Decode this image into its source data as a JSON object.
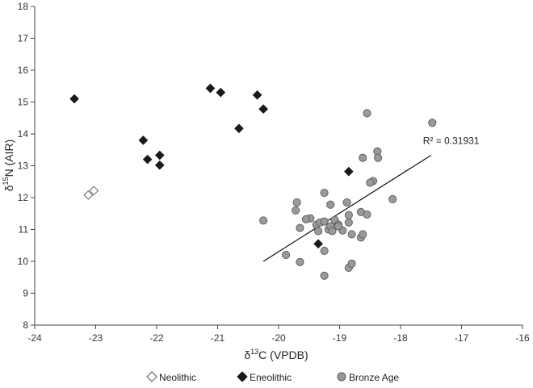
{
  "chart_data": {
    "type": "scatter",
    "title": "",
    "xlabel_prefix": "δ",
    "xlabel_sup": "13",
    "xlabel_rest": "C (VPDB)",
    "ylabel_prefix": "δ",
    "ylabel_sup": "15",
    "ylabel_rest": "N (AIR)",
    "xlim": [
      -24,
      -16
    ],
    "ylim": [
      8,
      18
    ],
    "xticks": [
      -24,
      -23,
      -22,
      -21,
      -20,
      -19,
      -18,
      -17,
      -16
    ],
    "yticks": [
      8,
      9,
      10,
      11,
      12,
      13,
      14,
      15,
      16,
      17,
      18
    ],
    "grid": false,
    "legend_position": "bottom",
    "series": [
      {
        "name": "Neolithic",
        "marker": "diamond-open",
        "color": "#ffffff",
        "stroke": "#555555",
        "points": [
          [
            -23.12,
            12.08
          ],
          [
            -23.03,
            12.22
          ]
        ]
      },
      {
        "name": "Eneolithic",
        "marker": "diamond-filled",
        "color": "#1a1a1a",
        "stroke": "#1a1a1a",
        "points": [
          [
            -23.35,
            15.1
          ],
          [
            -22.22,
            13.8
          ],
          [
            -22.15,
            13.2
          ],
          [
            -21.95,
            13.33
          ],
          [
            -21.95,
            13.02
          ],
          [
            -21.12,
            15.43
          ],
          [
            -20.95,
            15.3
          ],
          [
            -20.65,
            14.17
          ],
          [
            -20.35,
            15.22
          ],
          [
            -20.25,
            14.78
          ],
          [
            -18.85,
            12.82
          ],
          [
            -19.35,
            10.55
          ]
        ]
      },
      {
        "name": "Bronze Age",
        "marker": "circle",
        "color": "#9a9a9a",
        "stroke": "#5a5a5a",
        "points": [
          [
            -18.55,
            14.65
          ],
          [
            -17.48,
            14.35
          ],
          [
            -18.62,
            13.25
          ],
          [
            -18.38,
            13.45
          ],
          [
            -18.37,
            13.25
          ],
          [
            -18.45,
            12.52
          ],
          [
            -18.5,
            12.47
          ],
          [
            -18.13,
            11.95
          ],
          [
            -19.25,
            12.15
          ],
          [
            -19.7,
            11.85
          ],
          [
            -19.72,
            11.6
          ],
          [
            -19.48,
            11.35
          ],
          [
            -19.55,
            11.32
          ],
          [
            -19.38,
            11.15
          ],
          [
            -19.32,
            11.22
          ],
          [
            -19.25,
            11.25
          ],
          [
            -19.18,
            11.0
          ],
          [
            -19.15,
            11.1
          ],
          [
            -19.08,
            11.3
          ],
          [
            -19.02,
            11.15
          ],
          [
            -18.95,
            10.97
          ],
          [
            -19.12,
            10.95
          ],
          [
            -19.35,
            10.95
          ],
          [
            -18.88,
            11.85
          ],
          [
            -18.85,
            11.45
          ],
          [
            -18.85,
            11.22
          ],
          [
            -18.65,
            11.55
          ],
          [
            -18.55,
            11.47
          ],
          [
            -18.8,
            10.85
          ],
          [
            -18.65,
            10.75
          ],
          [
            -18.62,
            10.85
          ],
          [
            -19.65,
            11.05
          ],
          [
            -20.25,
            11.28
          ],
          [
            -19.88,
            10.2
          ],
          [
            -19.65,
            9.98
          ],
          [
            -19.25,
            10.33
          ],
          [
            -18.85,
            9.8
          ],
          [
            -18.8,
            9.93
          ],
          [
            -19.25,
            9.55
          ],
          [
            -19.15,
            11.78
          ],
          [
            -19.02,
            11.1
          ]
        ]
      }
    ],
    "trendline": {
      "label": "R² = 0.31931",
      "x": [
        -20.25,
        -17.5
      ],
      "y": [
        10.0,
        13.33
      ]
    }
  }
}
